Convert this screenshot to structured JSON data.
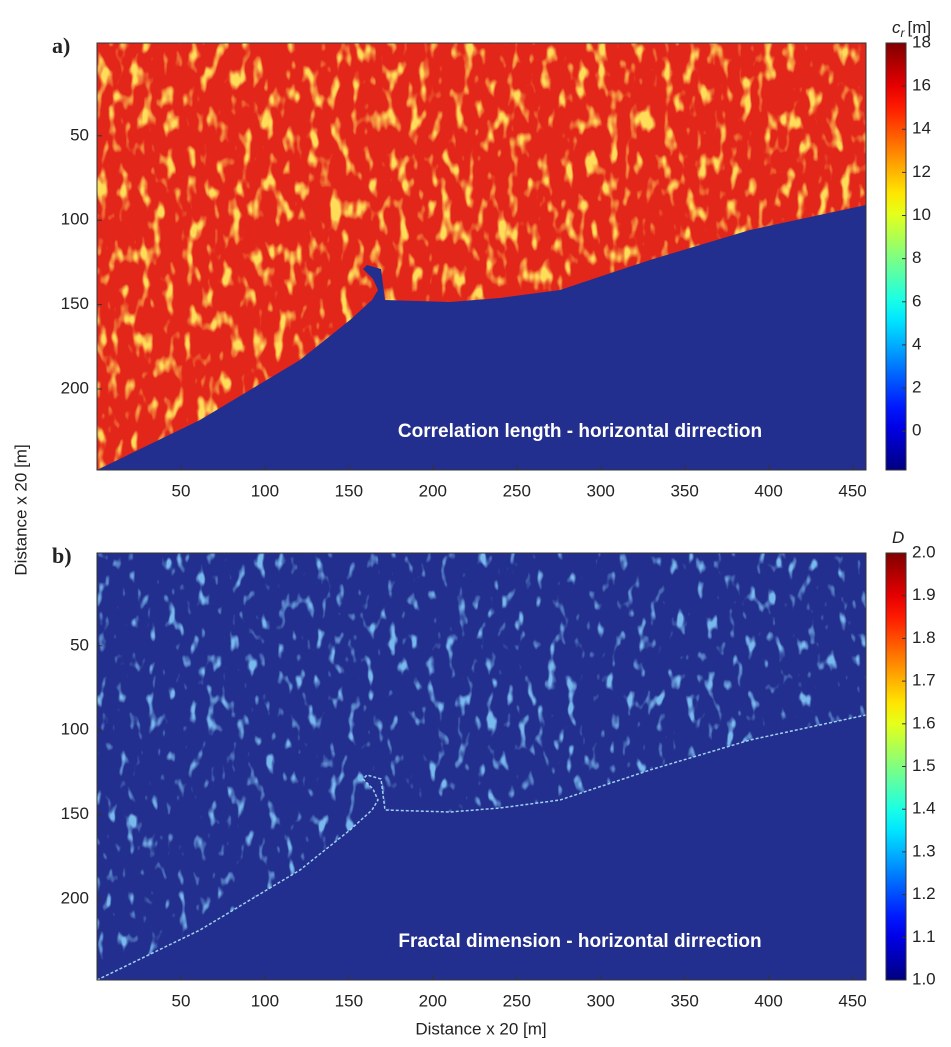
{
  "chart_data": [
    {
      "type": "heatmap",
      "panel_label": "a)",
      "annotation": "Correlation length - horizontal dirrection",
      "ylabel": "Distance x 20 [m]",
      "xlim": [
        0,
        458
      ],
      "xticks": [
        50,
        100,
        150,
        200,
        250,
        300,
        350,
        400,
        450
      ],
      "ylim": [
        -5,
        248
      ],
      "yticks": [
        50,
        100,
        150,
        200
      ],
      "colormap": "jet",
      "colorbar": {
        "symbol": "c",
        "subscript": "r",
        "unit": "[m]",
        "clim": [
          -1.8,
          18
        ],
        "ticks": [
          0,
          2,
          4,
          6,
          8,
          10,
          12,
          14,
          16,
          18
        ]
      }
    },
    {
      "type": "heatmap",
      "panel_label": "b)",
      "annotation": "Fractal dimension - horizontal dirrection",
      "xlabel": "Distance x 20 [m]",
      "xlim": [
        0,
        458
      ],
      "xticks": [
        50,
        100,
        150,
        200,
        250,
        300,
        350,
        400,
        450
      ],
      "ylim": [
        -5,
        248
      ],
      "yticks": [
        50,
        100,
        150,
        200
      ],
      "colormap": "jet",
      "colorbar": {
        "symbol": "D",
        "clim": [
          1,
          2
        ],
        "ticks": [
          {
            "value": 1,
            "label": "1.0"
          },
          1.1,
          1.2,
          1.3,
          1.4,
          1.5,
          1.6,
          1.7,
          1.8,
          1.9,
          {
            "value": 2,
            "label": "2.0"
          }
        ]
      }
    }
  ]
}
